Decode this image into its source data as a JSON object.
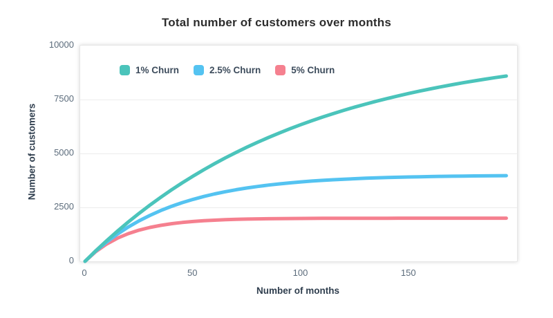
{
  "chart_data": {
    "type": "line",
    "title": "Total number of customers over months",
    "xlabel": "Number of months",
    "ylabel": "Number of customers",
    "xlim": [
      0,
      200
    ],
    "ylim": [
      0,
      10000
    ],
    "x_ticks": [
      0,
      50,
      100,
      150
    ],
    "y_ticks": [
      0,
      2500,
      5000,
      7500,
      10000
    ],
    "grid": "horizontal",
    "legend_position": "top-left-inside",
    "line_width": 5,
    "x": [
      0,
      5,
      10,
      15,
      20,
      25,
      30,
      35,
      40,
      45,
      50,
      55,
      60,
      65,
      70,
      75,
      80,
      85,
      90,
      95,
      100,
      105,
      110,
      115,
      120,
      125,
      130,
      135,
      140,
      145,
      150,
      155,
      160,
      165,
      170,
      175,
      180,
      185,
      190,
      195
    ],
    "series": [
      {
        "name": "1% Churn",
        "color": "#4bc4bb",
        "values": [
          0,
          490,
          956,
          1399,
          1821,
          2222,
          2603,
          2966,
          3310,
          3638,
          3950,
          4246,
          4528,
          4797,
          5052,
          5294,
          5525,
          5744,
          5953,
          6151,
          6340,
          6519,
          6690,
          6852,
          7006,
          7153,
          7293,
          7425,
          7551,
          7671,
          7786,
          7894,
          7997,
          8095,
          8189,
          8278,
          8362,
          8442,
          8519,
          8591
        ]
      },
      {
        "name": "2.5% Churn",
        "color": "#54c3f1",
        "values": [
          0,
          476,
          895,
          1264,
          1589,
          1876,
          2128,
          2351,
          2547,
          2720,
          2872,
          3006,
          3124,
          3228,
          3320,
          3401,
          3472,
          3535,
          3590,
          3639,
          3682,
          3720,
          3753,
          3782,
          3808,
          3831,
          3851,
          3869,
          3884,
          3898,
          3910,
          3921,
          3930,
          3939,
          3946,
          3952,
          3958,
          3963,
          3967,
          3971
        ]
      },
      {
        "name": "5% Churn",
        "color": "#f5808f",
        "values": [
          0,
          452,
          802,
          1073,
          1283,
          1445,
          1571,
          1668,
          1743,
          1801,
          1846,
          1881,
          1908,
          1929,
          1945,
          1957,
          1967,
          1974,
          1980,
          1985,
          1988,
          1991,
          1993,
          1994,
          1996,
          1997,
          1997,
          1998,
          1998,
          1999,
          1999,
          1999,
          1999,
          2000,
          2000,
          2000,
          2000,
          2000,
          2000,
          2000
        ]
      }
    ]
  }
}
